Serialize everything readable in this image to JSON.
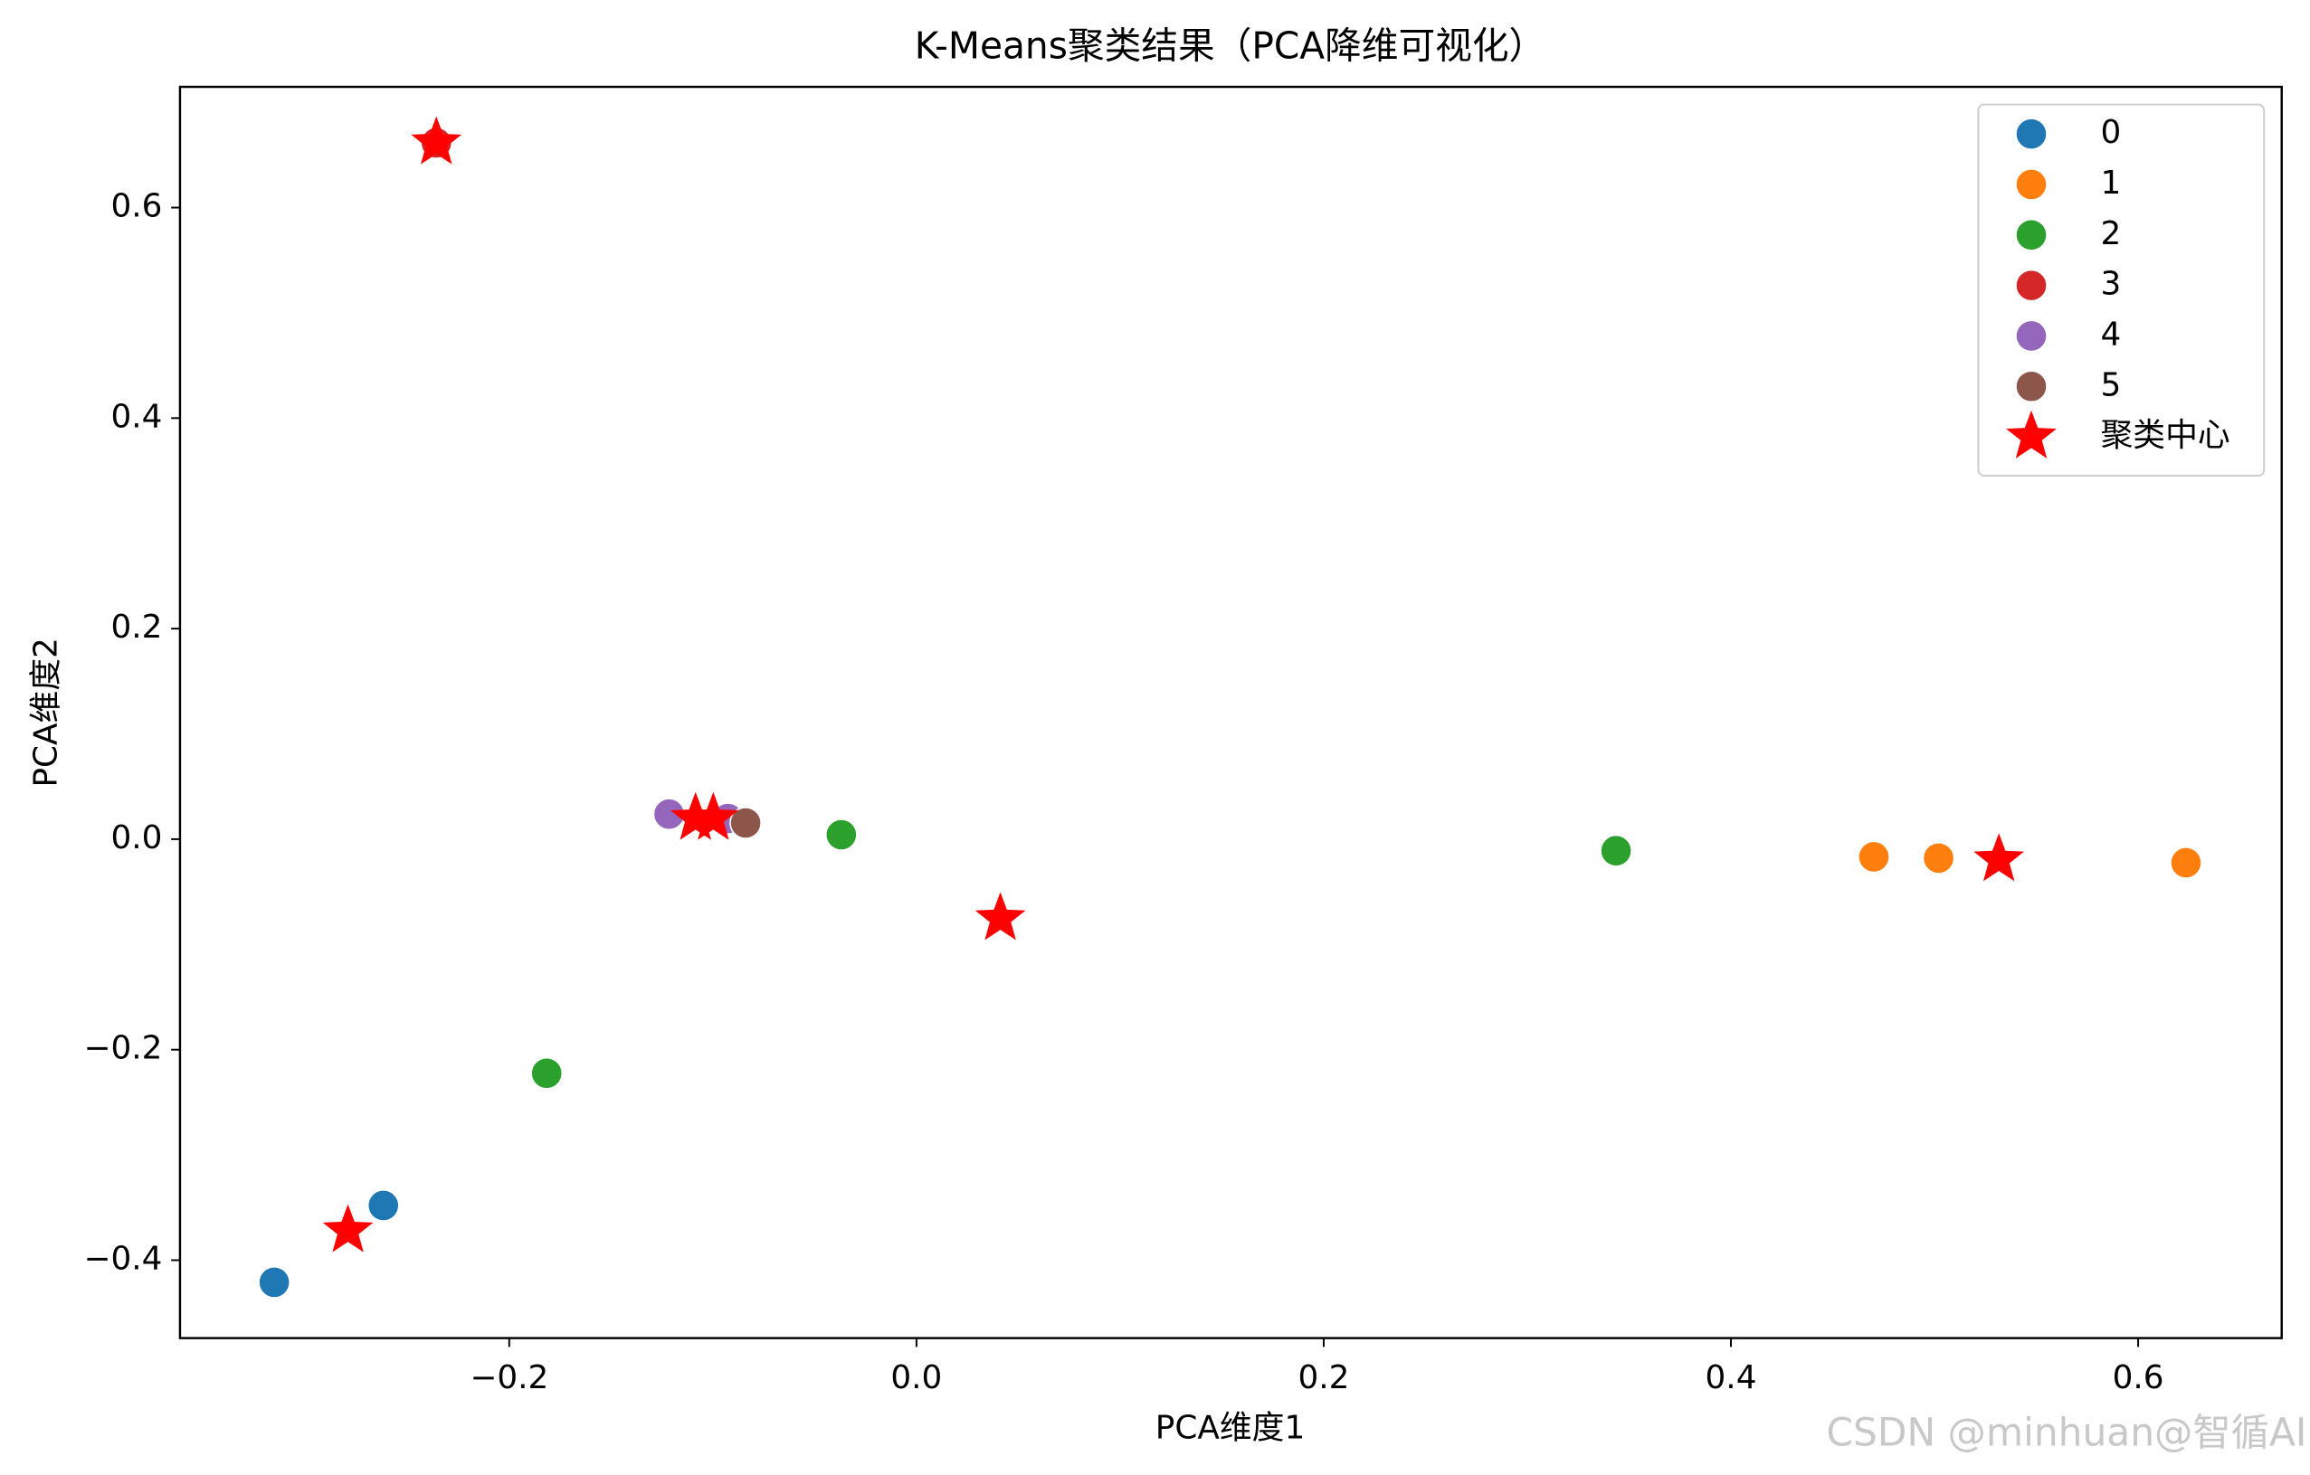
{
  "chart_data": {
    "type": "scatter",
    "title": "K-Means聚类结果（PCA降维可视化）",
    "xlabel": "PCA维度1",
    "ylabel": "PCA维度2",
    "xlim": [
      -0.3617,
      0.6705
    ],
    "ylim": [
      -0.474,
      0.7147
    ],
    "xticks": [
      {
        "value": -0.2,
        "label": "−0.2"
      },
      {
        "value": 0,
        "label": "0.0"
      },
      0.2,
      0.4,
      0.6
    ],
    "yticks": [
      {
        "value": -0.4,
        "label": "−0.4"
      },
      {
        "value": -0.2,
        "label": "−0.2"
      },
      {
        "value": 0,
        "label": "0.0"
      },
      0.2,
      0.4,
      0.6
    ],
    "legend": "upper right",
    "series": [
      {
        "name": "0",
        "color": "#1f77b4",
        "marker": "circle",
        "x": [
          -0.3154,
          -0.2618
        ],
        "y": [
          -0.421,
          -0.348
        ]
      },
      {
        "name": "1",
        "color": "#ff7f0e",
        "marker": "circle",
        "x": [
          0.4702,
          0.502,
          0.6235
        ],
        "y": [
          -0.0168,
          -0.018,
          -0.0224
        ]
      },
      {
        "name": "2",
        "color": "#2ca02c",
        "marker": "circle",
        "x": [
          0.3436,
          -0.0369,
          -0.1816
        ],
        "y": [
          -0.011,
          0.0042,
          -0.2224
        ]
      },
      {
        "name": "3",
        "color": "#d62728",
        "marker": "circle",
        "x": [
          -0.2358
        ],
        "y": [
          0.6615
        ]
      },
      {
        "name": "4",
        "color": "#9467bd",
        "marker": "circle",
        "x": [
          -0.1215,
          -0.0926
        ],
        "y": [
          0.0238,
          0.0196
        ]
      },
      {
        "name": "5",
        "color": "#8c564b",
        "marker": "circle",
        "x": [
          -0.0839
        ],
        "y": [
          0.0154
        ]
      },
      {
        "name": "聚类中心",
        "color": "#ff0000",
        "marker": "star",
        "x": [
          -0.2358,
          -0.2792,
          0.0412,
          0.5316,
          -0.1085,
          -0.0998
        ],
        "y": [
          0.6615,
          -0.372,
          -0.0755,
          -0.0196,
          0.0196,
          0.0196
        ]
      }
    ]
  },
  "watermark": "CSDN @minhuan@智循AI"
}
